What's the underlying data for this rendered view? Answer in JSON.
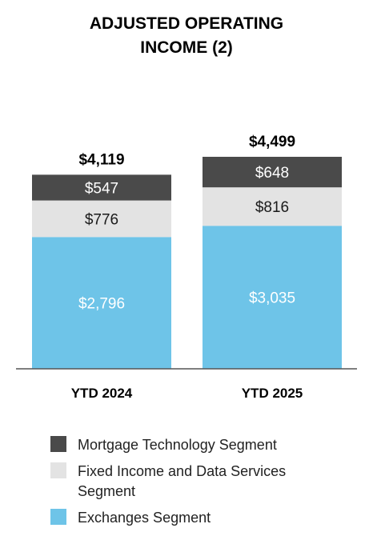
{
  "chart_data": {
    "type": "bar",
    "stacked": true,
    "title_lines": [
      "ADJUSTED OPERATING",
      "INCOME (2)"
    ],
    "categories": [
      "YTD 2024",
      "YTD 2025"
    ],
    "series": [
      {
        "name": "Exchanges Segment",
        "values": [
          2796,
          3035
        ],
        "labels": [
          "$2,796",
          "$3,035"
        ],
        "color": "#6ec4e8",
        "label_color": "#ffffff"
      },
      {
        "name": "Fixed Income and Data Services Segment",
        "values": [
          776,
          816
        ],
        "labels": [
          "$776",
          "$816"
        ],
        "color": "#e3e3e3",
        "label_color": "#1a1a1a"
      },
      {
        "name": "Mortgage Technology Segment",
        "values": [
          547,
          648
        ],
        "labels": [
          "$547",
          "$648"
        ],
        "color": "#4a4a4a",
        "label_color": "#ffffff"
      }
    ],
    "totals": [
      "$4,119",
      "$4,499"
    ],
    "grid": false
  },
  "legend": [
    {
      "label": "Mortgage Technology Segment",
      "color": "#4a4a4a"
    },
    {
      "label": "Fixed Income and Data Services Segment",
      "color": "#e3e3e3"
    },
    {
      "label": "Exchanges Segment",
      "color": "#6ec4e8"
    }
  ]
}
